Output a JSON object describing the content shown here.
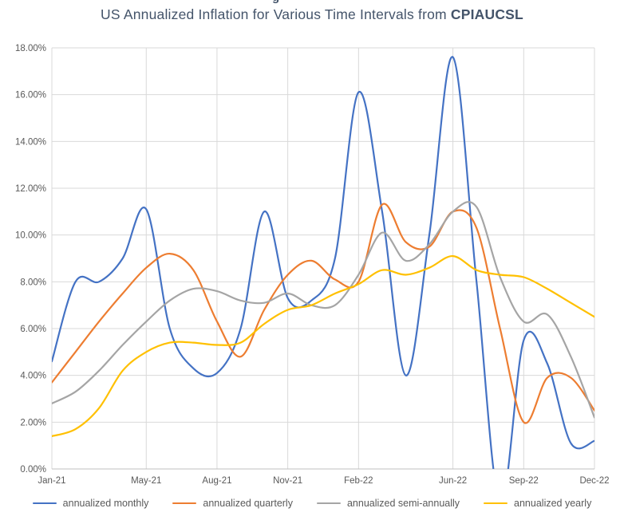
{
  "title": {
    "prefix": "US Annualized Inflation for Various Time Intervals from ",
    "bold": "CPIAUCSL",
    "color": "#44546A"
  },
  "artifacts": {
    "top_cropped_text": "g"
  },
  "chart_data": {
    "type": "line",
    "title": "US Annualized Inflation for Various Time Intervals from CPIAUCSL",
    "smooth": true,
    "grid": true,
    "grid_color": "#D9D9D9",
    "axis_color": "#BFBFBF",
    "tick_label_color": "#595959",
    "legend_position": "bottom",
    "ylim": [
      0,
      18
    ],
    "y_tick_step": 2,
    "y_ticks": [
      "0.00%",
      "2.00%",
      "4.00%",
      "6.00%",
      "8.00%",
      "10.00%",
      "12.00%",
      "14.00%",
      "16.00%",
      "18.00%"
    ],
    "x": [
      "Jan-21",
      "Feb-21",
      "Mar-21",
      "Apr-21",
      "May-21",
      "Jun-21",
      "Jul-21",
      "Aug-21",
      "Sep-21",
      "Oct-21",
      "Nov-21",
      "Dec-21",
      "Jan-22",
      "Feb-22",
      "Mar-22",
      "Apr-22",
      "May-22",
      "Jun-22",
      "Jul-22",
      "Aug-22",
      "Sep-22",
      "Oct-22",
      "Nov-22",
      "Dec-22"
    ],
    "x_tick_labels": [
      "Jan-21",
      "May-21",
      "Aug-21",
      "Nov-21",
      "Feb-22",
      "Jun-22",
      "Sep-22",
      "Dec-22"
    ],
    "x_tick_indices": [
      0,
      4,
      7,
      10,
      13,
      17,
      20,
      23
    ],
    "series": [
      {
        "name": "annualized monthly",
        "color": "#4472C4",
        "values": [
          4.6,
          8.0,
          8.0,
          9.0,
          11.1,
          6.0,
          4.3,
          4.1,
          6.0,
          11.0,
          7.3,
          7.2,
          9.0,
          16.1,
          11.0,
          4.0,
          10.0,
          17.6,
          8.0,
          -1.5,
          5.5,
          4.5,
          1.1,
          1.2
        ]
      },
      {
        "name": "annualized quarterly",
        "color": "#ED7D31",
        "values": [
          3.7,
          5.0,
          6.3,
          7.5,
          8.6,
          9.2,
          8.5,
          6.3,
          4.8,
          6.8,
          8.3,
          8.9,
          8.1,
          8.0,
          11.3,
          9.7,
          9.5,
          11.0,
          10.3,
          6.0,
          2.0,
          3.9,
          3.9,
          2.5
        ]
      },
      {
        "name": "annualized semi-annually",
        "color": "#A5A5A5",
        "values": [
          2.8,
          3.3,
          4.2,
          5.3,
          6.3,
          7.2,
          7.7,
          7.6,
          7.2,
          7.1,
          7.5,
          7.0,
          7.0,
          8.3,
          10.1,
          8.9,
          9.6,
          11.0,
          11.2,
          8.2,
          6.3,
          6.6,
          4.8,
          2.2
        ]
      },
      {
        "name": "annualized yearly",
        "color": "#FFC000",
        "values": [
          1.4,
          1.7,
          2.6,
          4.2,
          5.0,
          5.4,
          5.4,
          5.3,
          5.4,
          6.2,
          6.8,
          7.0,
          7.5,
          7.9,
          8.5,
          8.3,
          8.6,
          9.1,
          8.5,
          8.3,
          8.2,
          7.7,
          7.1,
          6.5
        ]
      }
    ]
  }
}
